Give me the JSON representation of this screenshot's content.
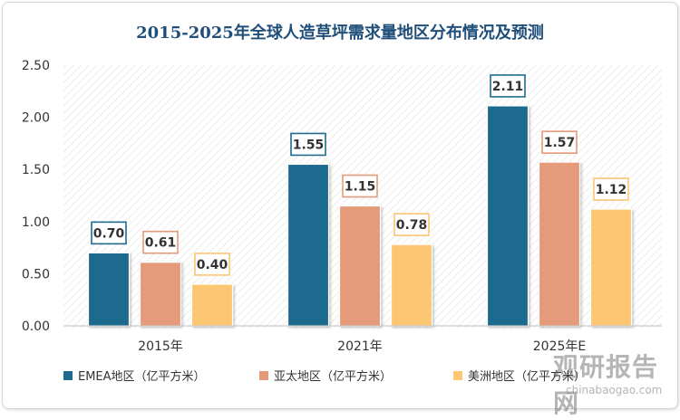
{
  "chart_data": {
    "type": "bar",
    "title": "2015-2025年全球人造草坪需求量地区分布情况及预测",
    "categories": [
      "2015年",
      "2021年",
      "2025年E"
    ],
    "series": [
      {
        "name": "EMEA地区（亿平方米）",
        "values": [
          0.7,
          1.55,
          2.11
        ],
        "color": "#1f6b8e"
      },
      {
        "name": "亚太地区（亿平方米）",
        "values": [
          0.61,
          1.15,
          1.57
        ],
        "color": "#e59a79"
      },
      {
        "name": "美洲地区（亿平方米）",
        "values": [
          0.4,
          0.78,
          1.12
        ],
        "color": "#fcc673"
      }
    ],
    "ylim": [
      0,
      2.5
    ],
    "yticks": [
      "0.00",
      "0.50",
      "1.00",
      "1.50",
      "2.00",
      "2.50"
    ],
    "grid": false,
    "legend": "bottom",
    "data_label_border": "#e59a79"
  },
  "watermark": {
    "logo": "观研报告网",
    "code": "chinabaogao.com"
  }
}
